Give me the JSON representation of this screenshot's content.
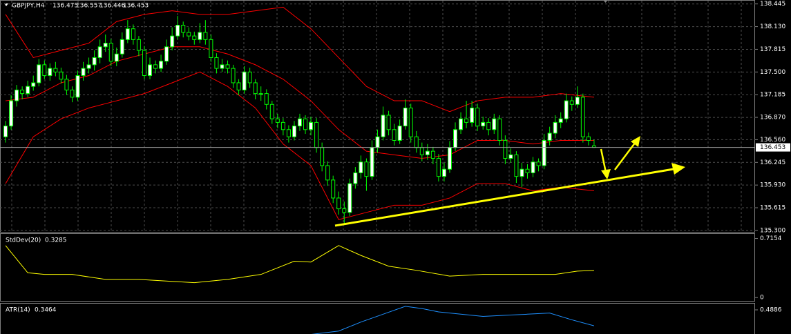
{
  "chart_data": [
    {
      "type": "candlestick",
      "title": "GBPJPY,H4",
      "xlim": [
        -1,
        135
      ],
      "ylim": [
        135.28,
        138.49
      ],
      "grid": true,
      "bar_color": "#00ff00",
      "bull_color": "#ffffff",
      "bear_color": "#000000",
      "price_line_color": "#a0a0a0",
      "yticks": [
        138.445,
        {
          "value": 138.13,
          "label": "138.130"
        },
        137.815,
        {
          "value": 137.5,
          "label": "137.500"
        },
        137.185,
        {
          "value": 136.87,
          "label": "136.870"
        },
        {
          "value": 136.56,
          "label": "136.560"
        },
        136.245,
        {
          "value": 135.93,
          "label": "135.930"
        },
        135.615,
        {
          "value": 135.3,
          "label": "135.300"
        }
      ],
      "candles": [
        [
          136.6,
          136.82,
          136.52,
          136.75
        ],
        [
          136.75,
          137.18,
          136.7,
          137.1
        ],
        [
          137.1,
          137.32,
          137.02,
          137.25
        ],
        [
          137.25,
          137.3,
          137.12,
          137.2
        ],
        [
          137.2,
          137.38,
          137.15,
          137.3
        ],
        [
          137.3,
          137.45,
          137.24,
          137.35
        ],
        [
          137.35,
          137.68,
          137.3,
          137.6
        ],
        [
          137.6,
          137.66,
          137.4,
          137.45
        ],
        [
          137.45,
          137.62,
          137.38,
          137.55
        ],
        [
          137.55,
          137.64,
          137.44,
          137.5
        ],
        [
          137.5,
          137.56,
          137.34,
          137.4
        ],
        [
          137.4,
          137.46,
          137.18,
          137.25
        ],
        [
          137.25,
          137.3,
          137.08,
          137.15
        ],
        [
          137.15,
          137.52,
          137.1,
          137.45
        ],
        [
          137.45,
          137.64,
          137.38,
          137.55
        ],
        [
          137.55,
          137.7,
          137.48,
          137.6
        ],
        [
          137.6,
          137.8,
          137.52,
          137.7
        ],
        [
          137.7,
          137.95,
          137.62,
          137.85
        ],
        [
          137.85,
          138.02,
          137.78,
          137.9
        ],
        [
          137.9,
          137.96,
          137.58,
          137.65
        ],
        [
          137.65,
          137.84,
          137.58,
          137.75
        ],
        [
          137.75,
          138.05,
          137.7,
          137.95
        ],
        [
          137.95,
          138.22,
          137.9,
          138.1
        ],
        [
          138.1,
          138.16,
          137.88,
          137.95
        ],
        [
          137.95,
          138.0,
          137.72,
          137.8
        ],
        [
          137.8,
          137.86,
          137.4,
          137.45
        ],
        [
          137.45,
          137.7,
          137.4,
          137.6
        ],
        [
          137.6,
          137.66,
          137.48,
          137.55
        ],
        [
          137.55,
          137.74,
          137.5,
          137.65
        ],
        [
          137.65,
          137.95,
          137.6,
          137.85
        ],
        [
          137.85,
          138.12,
          137.8,
          138.0
        ],
        [
          138.0,
          138.28,
          137.95,
          138.15
        ],
        [
          138.15,
          138.2,
          137.98,
          138.05
        ],
        [
          138.05,
          138.12,
          137.94,
          138.0
        ],
        [
          138.0,
          138.06,
          137.88,
          137.95
        ],
        [
          137.95,
          138.18,
          137.9,
          138.05
        ],
        [
          138.05,
          138.22,
          137.88,
          137.95
        ],
        [
          137.95,
          138.02,
          137.64,
          137.7
        ],
        [
          137.7,
          137.76,
          137.48,
          137.55
        ],
        [
          137.55,
          137.68,
          137.5,
          137.6
        ],
        [
          137.6,
          137.66,
          137.48,
          137.55
        ],
        [
          137.55,
          137.6,
          137.28,
          137.35
        ],
        [
          137.35,
          137.4,
          137.18,
          137.25
        ],
        [
          137.25,
          137.58,
          137.2,
          137.5
        ],
        [
          137.5,
          137.56,
          137.28,
          137.35
        ],
        [
          137.35,
          137.4,
          137.12,
          137.2
        ],
        [
          137.2,
          137.3,
          137.1,
          137.2
        ],
        [
          137.2,
          137.26,
          136.98,
          137.05
        ],
        [
          137.05,
          137.1,
          136.78,
          136.85
        ],
        [
          136.85,
          136.92,
          136.72,
          136.8
        ],
        [
          136.8,
          136.86,
          136.62,
          136.7
        ],
        [
          136.7,
          136.76,
          136.52,
          136.6
        ],
        [
          136.6,
          136.82,
          136.55,
          136.75
        ],
        [
          136.75,
          136.92,
          136.68,
          136.85
        ],
        [
          136.85,
          136.9,
          136.64,
          136.7
        ],
        [
          136.7,
          136.88,
          136.62,
          136.8
        ],
        [
          136.8,
          136.86,
          136.38,
          136.45
        ],
        [
          136.45,
          136.52,
          136.12,
          136.2
        ],
        [
          136.2,
          136.26,
          135.92,
          136.0
        ],
        [
          136.0,
          136.06,
          135.68,
          135.75
        ],
        [
          135.75,
          135.84,
          135.52,
          135.6
        ],
        [
          135.6,
          135.7,
          135.4,
          135.55
        ],
        [
          135.55,
          136.02,
          135.5,
          135.95
        ],
        [
          135.95,
          136.18,
          135.88,
          136.1
        ],
        [
          136.1,
          136.34,
          136.02,
          136.25
        ],
        [
          136.25,
          136.3,
          135.85,
          136.05
        ],
        [
          136.05,
          136.55,
          136.0,
          136.45
        ],
        [
          136.45,
          136.7,
          136.38,
          136.6
        ],
        [
          136.6,
          137.02,
          136.55,
          136.9
        ],
        [
          136.9,
          136.96,
          136.62,
          136.7
        ],
        [
          136.7,
          136.78,
          136.48,
          136.55
        ],
        [
          136.55,
          136.84,
          136.5,
          136.75
        ],
        [
          136.75,
          137.12,
          136.7,
          137.0
        ],
        [
          137.0,
          137.06,
          136.52,
          136.6
        ],
        [
          136.6,
          136.68,
          136.38,
          136.45
        ],
        [
          136.45,
          136.52,
          136.26,
          136.35
        ],
        [
          136.35,
          136.5,
          136.28,
          136.4
        ],
        [
          136.4,
          136.46,
          136.22,
          136.3
        ],
        [
          136.3,
          136.36,
          135.98,
          136.05
        ],
        [
          136.05,
          136.24,
          135.98,
          136.15
        ],
        [
          136.15,
          136.54,
          136.1,
          136.45
        ],
        [
          136.45,
          136.8,
          136.4,
          136.7
        ],
        [
          136.7,
          136.94,
          136.64,
          136.85
        ],
        [
          136.85,
          137.1,
          136.72,
          136.8
        ],
        [
          136.8,
          137.1,
          136.74,
          137.0
        ],
        [
          137.0,
          137.06,
          136.68,
          136.75
        ],
        [
          136.75,
          136.88,
          136.7,
          136.8
        ],
        [
          136.8,
          136.86,
          136.62,
          136.7
        ],
        [
          136.7,
          136.92,
          136.64,
          136.85
        ],
        [
          136.85,
          136.9,
          136.48,
          136.55
        ],
        [
          136.55,
          136.62,
          136.22,
          136.3
        ],
        [
          136.3,
          136.44,
          136.24,
          136.35
        ],
        [
          136.35,
          136.4,
          135.96,
          136.05
        ],
        [
          136.05,
          136.24,
          135.9,
          136.15
        ],
        [
          136.15,
          136.22,
          136.02,
          136.1
        ],
        [
          136.1,
          136.32,
          136.04,
          136.25
        ],
        [
          136.25,
          136.3,
          136.12,
          136.2
        ],
        [
          136.2,
          136.64,
          136.15,
          136.55
        ],
        [
          136.55,
          136.74,
          136.48,
          136.65
        ],
        [
          136.65,
          136.9,
          136.58,
          136.8
        ],
        [
          136.8,
          136.94,
          136.72,
          136.85
        ],
        [
          136.85,
          137.2,
          136.8,
          137.1
        ],
        [
          137.1,
          137.16,
          136.96,
          137.05
        ],
        [
          137.05,
          137.3,
          137.0,
          137.15
        ],
        [
          137.15,
          137.2,
          136.52,
          136.6
        ],
        [
          136.6,
          136.66,
          136.48,
          136.55
        ],
        [
          136.475,
          136.557,
          136.446,
          136.453
        ]
      ],
      "series": [
        {
          "color": "#ff0000",
          "x": [
            0,
            5,
            10,
            15,
            20,
            25,
            30,
            35,
            40,
            45,
            50,
            55,
            60,
            65,
            70,
            75,
            80,
            85,
            90,
            95,
            100,
            106
          ],
          "values": [
            138.3,
            137.7,
            137.8,
            137.9,
            138.2,
            138.3,
            138.35,
            138.3,
            138.3,
            138.35,
            138.4,
            138.1,
            137.7,
            137.3,
            137.1,
            137.1,
            136.95,
            137.1,
            137.15,
            137.15,
            137.2,
            137.15
          ]
        },
        {
          "color": "#ff0000",
          "x": [
            0,
            5,
            10,
            15,
            20,
            25,
            30,
            35,
            40,
            45,
            50,
            55,
            60,
            65,
            70,
            75,
            80,
            85,
            90,
            95,
            100,
            106
          ],
          "values": [
            137.1,
            137.15,
            137.35,
            137.45,
            137.65,
            137.75,
            137.85,
            137.85,
            137.75,
            137.6,
            137.4,
            137.1,
            136.7,
            136.4,
            136.35,
            136.3,
            136.35,
            136.55,
            136.55,
            136.5,
            136.55,
            136.55
          ]
        },
        {
          "color": "#ff0000",
          "x": [
            0,
            5,
            10,
            15,
            20,
            25,
            30,
            35,
            40,
            45,
            50,
            55,
            60,
            65,
            70,
            75,
            80,
            85,
            90,
            95,
            100,
            106
          ],
          "values": [
            135.95,
            136.6,
            136.85,
            137.0,
            137.1,
            137.2,
            137.35,
            137.5,
            137.3,
            137.0,
            136.5,
            136.2,
            135.45,
            135.55,
            135.65,
            135.65,
            135.75,
            135.95,
            135.95,
            135.85,
            135.9,
            135.85
          ]
        }
      ]
    },
    {
      "type": "line",
      "title": "StdDev(20)",
      "xlim": [
        -1,
        135
      ],
      "ylim": [
        -0.04,
        0.77
      ],
      "yticks": [
        0.7154,
        0
      ],
      "series": [
        {
          "color": "#ffff00",
          "x": [
            0,
            4,
            7,
            12,
            18,
            24,
            34,
            40,
            46,
            52,
            55,
            60,
            64,
            69,
            74,
            80,
            86,
            93,
            99,
            103,
            106
          ],
          "values": [
            0.63,
            0.3,
            0.28,
            0.28,
            0.22,
            0.22,
            0.18,
            0.22,
            0.28,
            0.44,
            0.43,
            0.63,
            0.51,
            0.38,
            0.33,
            0.26,
            0.28,
            0.28,
            0.28,
            0.32,
            0.3285
          ]
        }
      ]
    },
    {
      "type": "line",
      "title": "ATR(14)",
      "xlim": [
        -1,
        135
      ],
      "ylim": [
        0.2,
        0.544
      ],
      "yticks": [
        0.4886
      ],
      "series": [
        {
          "color": "#1e90ff",
          "x": [
            55,
            60,
            64,
            68,
            72,
            75,
            78,
            82,
            86,
            90,
            94,
            98,
            102,
            106
          ],
          "values": [
            0.27,
            0.3,
            0.38,
            0.45,
            0.52,
            0.5,
            0.47,
            0.45,
            0.43,
            0.44,
            0.45,
            0.46,
            0.4,
            0.3464
          ]
        }
      ]
    }
  ]
}
